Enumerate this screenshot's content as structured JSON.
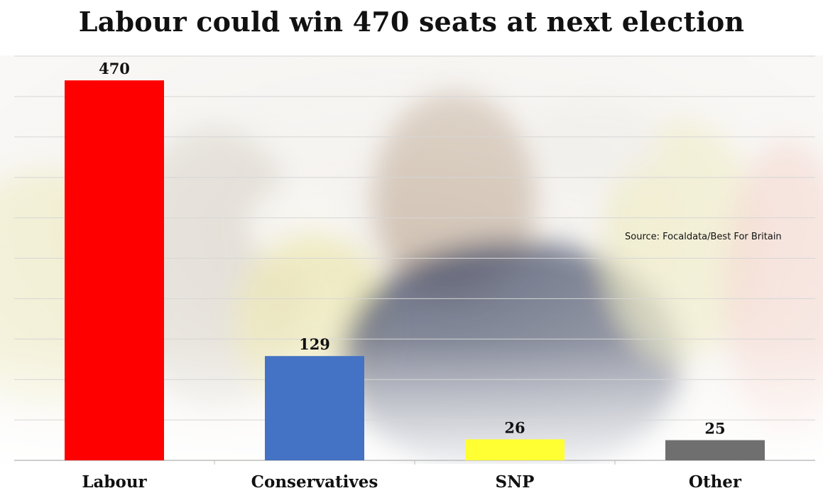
{
  "chart_data": {
    "type": "bar",
    "title": "Labour could win 470 seats at next election",
    "categories": [
      "Labour",
      "Conservatives",
      "SNP",
      "Other"
    ],
    "values": [
      470,
      129,
      26,
      25
    ],
    "data_labels": [
      "470",
      "129",
      "26",
      "25"
    ],
    "colors": [
      "#ff0000",
      "#4472c4",
      "#ffff33",
      "#6f6f6f"
    ],
    "ylim": [
      0,
      500
    ],
    "grid": true,
    "gridline_step": 50,
    "xlabel": "",
    "ylabel": "",
    "source": "Source: Focaldata/Best For Britain"
  },
  "background": {
    "photo_subject": "man-in-navy-polo-crowd-photo",
    "tones": [
      "#f1eeeb",
      "#d8d1c7",
      "#e3ddb0",
      "#2e3a55",
      "#e9c9c0"
    ]
  }
}
